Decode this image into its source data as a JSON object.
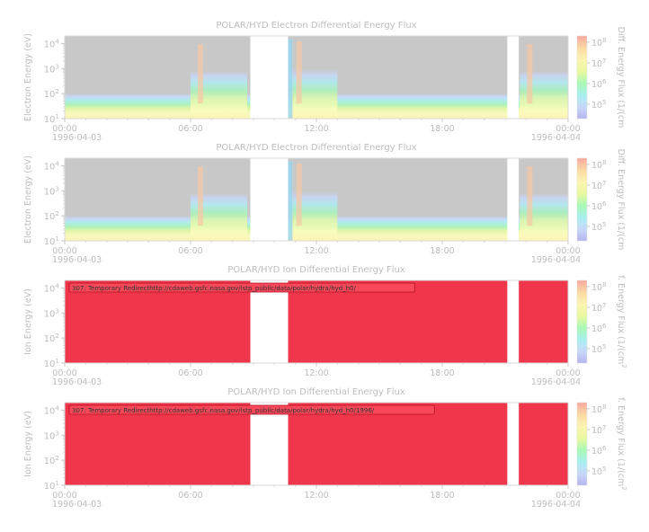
{
  "chart_data": [
    {
      "type": "heatmap",
      "title": "POLAR/HYD  Electron Differential Energy Flux",
      "ylabel": "Electron Energy (eV)",
      "zlabel": "Diff. Energy Flux (1/(cm",
      "y_scale": "log",
      "ylim": [
        10,
        20000
      ],
      "z_scale": "log",
      "zlim": [
        20000,
        200000000
      ],
      "colorbar_ticks": [
        "10^5",
        "10^6",
        "10^7",
        "10^8"
      ],
      "x_ticks": [
        "00:00",
        "06:00",
        "12:00",
        "18:00",
        "00:00"
      ],
      "x_date_start": "1996-04-03",
      "x_date_end": "1996-04-04",
      "data_gaps_hours": [
        [
          8.85,
          10.65
        ],
        [
          21.1,
          21.65
        ]
      ],
      "error_message": ""
    },
    {
      "type": "heatmap",
      "title": "POLAR/HYD  Electron Differential Energy Flux",
      "ylabel": "Electron Energy (eV)",
      "zlabel": "Diff. Energy Flux (1/(cm",
      "y_scale": "log",
      "ylim": [
        10,
        20000
      ],
      "z_scale": "log",
      "zlim": [
        20000,
        200000000
      ],
      "colorbar_ticks": [
        "10^5",
        "10^6",
        "10^7",
        "10^8"
      ],
      "x_ticks": [
        "00:00",
        "06:00",
        "12:00",
        "18:00",
        "00:00"
      ],
      "x_date_start": "1996-04-03",
      "x_date_end": "1996-04-04",
      "data_gaps_hours": [
        [
          8.85,
          10.65
        ],
        [
          21.1,
          21.65
        ]
      ],
      "error_message": ""
    },
    {
      "type": "heatmap",
      "title": "POLAR/HYD  Ion Differential Energy Flux",
      "ylabel": "Ion Energy (eV)",
      "zlabel": "f. Energy Flux (1/(cm^2",
      "y_scale": "log",
      "ylim": [
        10,
        20000
      ],
      "z_scale": "log",
      "zlim": [
        20000,
        200000000
      ],
      "colorbar_ticks": [
        "10^5",
        "10^6",
        "10^7",
        "10^8"
      ],
      "x_ticks": [
        "00:00",
        "06:00",
        "12:00",
        "18:00",
        "00:00"
      ],
      "x_date_start": "1996-04-03",
      "x_date_end": "1996-04-04",
      "data_gaps_hours": [
        [
          8.85,
          10.65
        ],
        [
          21.1,
          21.65
        ]
      ],
      "error_message": "307: Temporary Redirecthttp://cdaweb.gsfc.nasa.gov/istp_public/data/polar/hydra/hyd_h0/"
    },
    {
      "type": "heatmap",
      "title": "POLAR/HYD  Ion Differential Energy Flux",
      "ylabel": "Ion Energy (eV)",
      "zlabel": "f. Energy Flux (1/(cm^2",
      "y_scale": "log",
      "ylim": [
        10,
        20000
      ],
      "z_scale": "log",
      "zlim": [
        20000,
        200000000
      ],
      "colorbar_ticks": [
        "10^5",
        "10^6",
        "10^7",
        "10^8"
      ],
      "x_ticks": [
        "00:00",
        "06:00",
        "12:00",
        "18:00",
        "00:00"
      ],
      "x_date_start": "1996-04-03",
      "x_date_end": "1996-04-04",
      "data_gaps_hours": [
        [
          8.85,
          10.65
        ],
        [
          21.1,
          21.65
        ]
      ],
      "error_message": "307: Temporary Redirecthttp://cdaweb.gsfc.nasa.gov/istp_public/data/polar/hydra/hyd_h0/1996/"
    }
  ],
  "colors": {
    "fill_value_gray": "#c8c8c8",
    "error_red": "#f0364a",
    "text_gray": "#bdbdbd",
    "colormap": [
      "#b4b4ec",
      "#c8d8f8",
      "#a8f0f0",
      "#a8f8b4",
      "#ecf8a0",
      "#fcf4b0",
      "#fcd8a4",
      "#f8a8a0"
    ]
  }
}
